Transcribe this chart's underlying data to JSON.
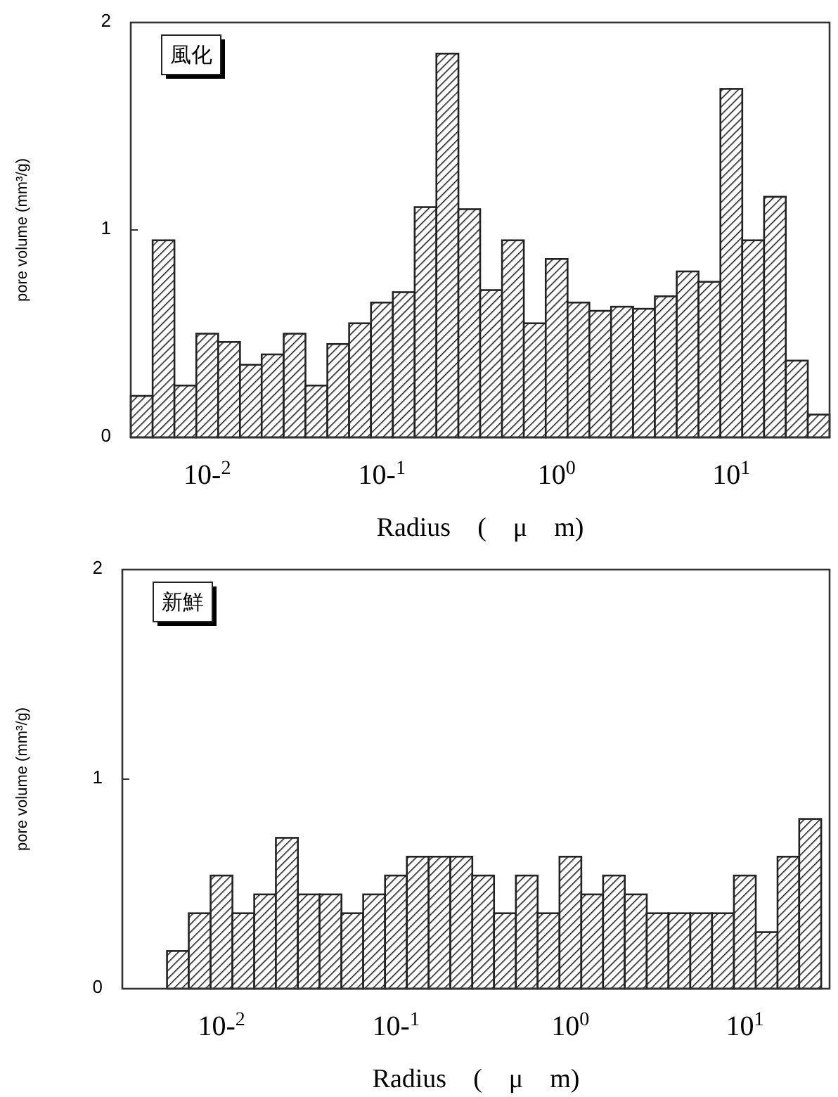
{
  "chart_data": [
    {
      "type": "histogram",
      "log": "x",
      "color": "#222222",
      "bins": [
        0.00365,
        0.00487,
        0.00649,
        0.00866,
        0.01155,
        0.0154,
        0.0205,
        0.0274,
        0.0365,
        0.0487,
        0.0649,
        0.0866,
        0.1155,
        0.154,
        0.205,
        0.274,
        0.365,
        0.487,
        0.649,
        0.866,
        1.155,
        1.54,
        2.05,
        2.74,
        3.65,
        4.87,
        6.49,
        8.66,
        11.55,
        15.4,
        20.5,
        27.4,
        36.5
      ],
      "values": [
        0.2,
        0.95,
        0.25,
        0.5,
        0.46,
        0.35,
        0.4,
        0.5,
        0.25,
        0.45,
        0.55,
        0.65,
        0.7,
        1.11,
        1.85,
        1.1,
        0.71,
        0.95,
        0.55,
        0.86,
        0.65,
        0.61,
        0.63,
        0.62,
        0.68,
        0.8,
        0.75,
        1.68,
        0.95,
        1.16,
        0.37,
        0.11
      ],
      "xlim": [
        0.00365,
        36.5
      ],
      "ylim": [
        0,
        2
      ],
      "yticks": [
        0,
        1,
        2
      ],
      "xticks": [
        {
          "value": 0.01,
          "label": "10-$^{2}$"
        },
        {
          "value": 0.1,
          "label": "10-$^{1}$"
        },
        {
          "value": 1,
          "label": "10$^{0}$"
        },
        {
          "value": 10,
          "label": "10$^{1}$"
        }
      ],
      "xlabel": "Radius　(　μ　m)",
      "ylabel": "pore volume (mm³/g)",
      "annotations": [
        "風化"
      ]
    },
    {
      "type": "histogram",
      "log": "x",
      "color": "#222222",
      "bins": [
        0.00487,
        0.00649,
        0.00866,
        0.01155,
        0.0154,
        0.0205,
        0.0274,
        0.0365,
        0.0487,
        0.0649,
        0.0866,
        0.1155,
        0.154,
        0.205,
        0.274,
        0.365,
        0.487,
        0.649,
        0.866,
        1.155,
        1.54,
        2.05,
        2.74,
        3.65,
        4.87,
        6.49,
        8.66,
        11.55,
        15.4,
        20.5,
        27.4
      ],
      "values": [
        0.18,
        0.36,
        0.54,
        0.36,
        0.45,
        0.72,
        0.45,
        0.45,
        0.36,
        0.45,
        0.54,
        0.63,
        0.63,
        0.63,
        0.54,
        0.36,
        0.54,
        0.36,
        0.63,
        0.45,
        0.54,
        0.45,
        0.36,
        0.36,
        0.36,
        0.36,
        0.54,
        0.27,
        0.63,
        0.81
      ],
      "xlim": [
        0.0027,
        30.6
      ],
      "ylim": [
        0,
        2
      ],
      "yticks": [
        0,
        1,
        2
      ],
      "xticks": [
        {
          "value": 0.01,
          "label": "10-$^{2}$"
        },
        {
          "value": 0.1,
          "label": "10-$^{1}$"
        },
        {
          "value": 1,
          "label": "10$^{0}$"
        },
        {
          "value": 10,
          "label": "10$^{1}$"
        }
      ],
      "xlabel": "Radius　(　μ　m)",
      "ylabel": "pore volume (mm³/g)",
      "annotations": [
        "新鮮"
      ]
    }
  ]
}
